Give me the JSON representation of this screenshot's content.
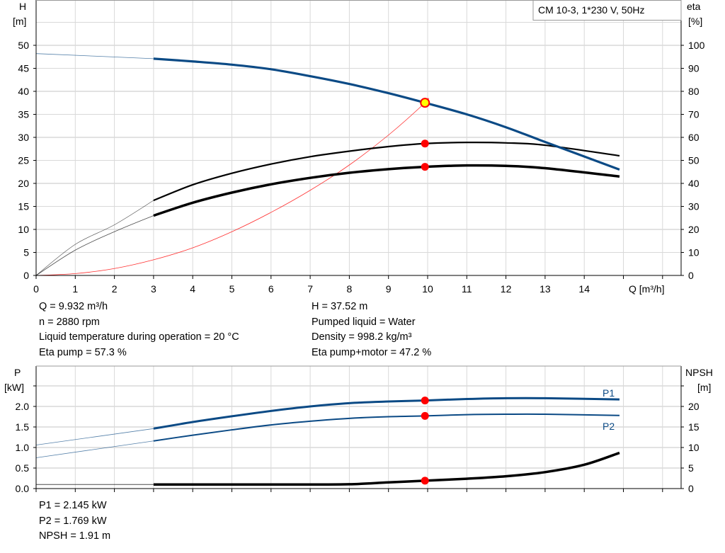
{
  "chart_data": [
    {
      "type": "line",
      "title": "CM 10-3, 1*230 V, 50Hz",
      "xlabel": "Q [m³/h]",
      "ylabel": "H\n[m]",
      "y2label": "eta\n[%]",
      "xlim": [
        0,
        16
      ],
      "ylim": [
        0,
        55
      ],
      "y2lim": [
        0,
        110
      ],
      "x_ticks": [
        "0",
        "1",
        "2",
        "3",
        "4",
        "5",
        "6",
        "7",
        "8",
        "9",
        "10",
        "11",
        "12",
        "13",
        "14"
      ],
      "y_ticks": [
        "0",
        "5",
        "10",
        "15",
        "20",
        "25",
        "30",
        "35",
        "40",
        "45",
        "50"
      ],
      "y2_ticks": [
        "0",
        "10",
        "20",
        "30",
        "40",
        "50",
        "60",
        "70",
        "80",
        "90",
        "100"
      ],
      "grid": true,
      "series": [
        {
          "id": "H",
          "axis": "left",
          "color": "#0b4a85",
          "x": [
            0,
            3,
            4,
            5,
            6,
            7,
            8,
            9,
            9.932,
            11,
            12,
            13,
            14.9
          ],
          "y": [
            48.2,
            47.1,
            46.5,
            45.8,
            44.8,
            43.3,
            41.6,
            39.6,
            37.52,
            35,
            32.2,
            29,
            23
          ]
        },
        {
          "id": "eta-pump",
          "axis": "right",
          "color": "#000000",
          "x": [
            0,
            1,
            2,
            3,
            4,
            5,
            6,
            7,
            8,
            9,
            9.932,
            11,
            12,
            13,
            14.9
          ],
          "y": [
            0,
            13.5,
            22,
            32.6,
            39.4,
            44.4,
            48.4,
            51.6,
            54,
            56,
            57.3,
            57.8,
            57.6,
            56.6,
            52
          ]
        },
        {
          "id": "eta-pump-motor",
          "axis": "right",
          "color": "#000000",
          "x": [
            0,
            1,
            2,
            3,
            4,
            5,
            6,
            7,
            8,
            9,
            9.932,
            11,
            12,
            13,
            14.9
          ],
          "y": [
            0,
            11,
            19,
            26,
            31.6,
            36,
            39.6,
            42.4,
            44.6,
            46.2,
            47.2,
            47.8,
            47.6,
            46.6,
            43
          ]
        },
        {
          "id": "system-curve",
          "axis": "left",
          "color": "#ff3030",
          "x": [
            0,
            1,
            2,
            3,
            4,
            5,
            6,
            7,
            8,
            9,
            9.932,
            10
          ],
          "y": [
            0,
            0.4,
            1.5,
            3.4,
            6,
            9.5,
            13.7,
            18.5,
            24,
            30.5,
            37.52,
            38.5
          ]
        }
      ],
      "duty_point": {
        "Q": 9.932,
        "H": 37.52,
        "eta_pump": 57.3,
        "eta_pump_motor": 47.2
      }
    },
    {
      "type": "line",
      "ylabel": "P\n[kW]",
      "y2label": "NPSH\n[m]",
      "xlim": [
        0,
        16
      ],
      "ylim": [
        0,
        3
      ],
      "y2lim": [
        0,
        30
      ],
      "y_ticks": [
        "0.0",
        "0.5",
        "1.0",
        "1.5",
        "2.0",
        ""
      ],
      "y2_ticks": [
        "0",
        "5",
        "10",
        "15",
        "20",
        ""
      ],
      "grid": true,
      "series": [
        {
          "name": "P1",
          "axis": "left",
          "color": "#0b4a85",
          "x": [
            0,
            3,
            4,
            5,
            6,
            7,
            8,
            9,
            9.932,
            11,
            12,
            13,
            14.9
          ],
          "y": [
            1.06,
            1.46,
            1.62,
            1.76,
            1.89,
            2.0,
            2.08,
            2.12,
            2.145,
            2.18,
            2.2,
            2.2,
            2.17
          ]
        },
        {
          "name": "P2",
          "axis": "left",
          "color": "#0b4a85",
          "x": [
            0,
            3,
            4,
            5,
            6,
            7,
            8,
            9,
            9.932,
            11,
            12,
            13,
            14.9
          ],
          "y": [
            0.75,
            1.16,
            1.3,
            1.43,
            1.55,
            1.64,
            1.71,
            1.75,
            1.769,
            1.8,
            1.81,
            1.81,
            1.78
          ]
        },
        {
          "id": "NPSH",
          "axis": "right",
          "color": "#000000",
          "x": [
            0,
            3,
            5,
            7,
            8,
            9,
            9.932,
            11,
            12,
            13,
            14,
            14.9
          ],
          "y": [
            1.0,
            1.0,
            1.0,
            1.0,
            1.05,
            1.5,
            1.91,
            2.4,
            3.0,
            4.0,
            5.8,
            8.7
          ]
        }
      ],
      "duty_point": {
        "P1": 2.145,
        "P2": 1.769,
        "NPSH": 1.91
      }
    }
  ],
  "info": {
    "left": [
      "Q = 9.932 m³/h",
      "n = 2880 rpm",
      "Liquid temperature during operation = 20 °C",
      "Eta pump = 57.3 %"
    ],
    "right": [
      "H = 37.52 m",
      "Pumped liquid = Water",
      "Density = 998.2 kg/m³",
      "Eta pump+motor = 47.2 %"
    ],
    "bottom": [
      "P1 = 2.145 kW",
      "P2 = 1.769 kW",
      "NPSH = 1.91 m"
    ]
  },
  "labels": {
    "h": "H",
    "h_unit": "[m]",
    "eta": "eta",
    "eta_unit": "[%]",
    "p": "P",
    "p_unit": "[kW]",
    "npsh": "NPSH",
    "npsh_unit": "[m]",
    "q": "Q [m³/h]",
    "p1": "P1",
    "p2": "P2",
    "legend": "CM 10-3, 1*230 V, 50Hz"
  },
  "colors": {
    "curve_blue": "#0b4a85",
    "duty_red": "#ff0000",
    "duty_yellow": "#ffff00",
    "grid": "#d9d9d9"
  }
}
